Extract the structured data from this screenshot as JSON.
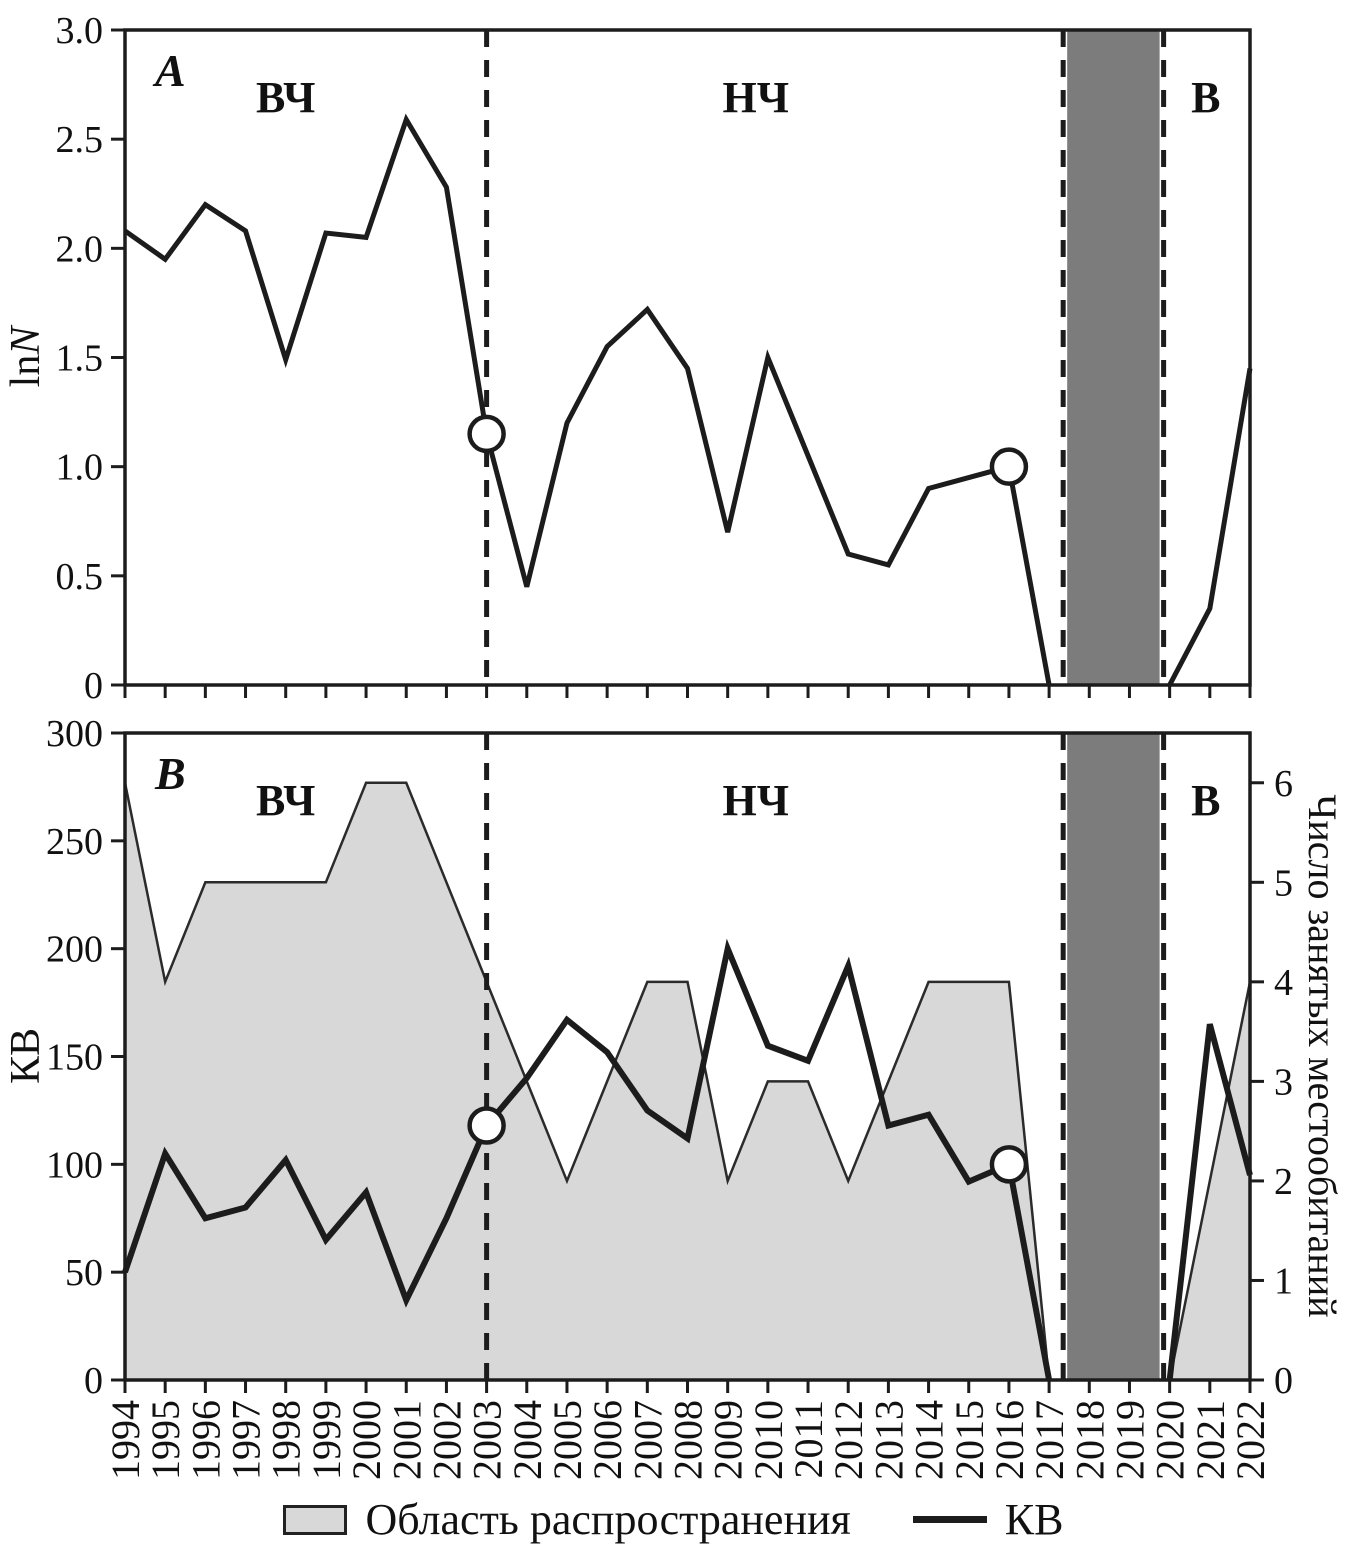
{
  "colors": {
    "line": "#1c1c1c",
    "area_fill": "#d8d8d8",
    "area_edge": "#2b2b2b",
    "band": "#7c7c7c",
    "background": "#ffffff"
  },
  "legend": {
    "area_label": "Область распространения",
    "line_label": "КВ"
  },
  "chart_data": [
    {
      "type": "line",
      "panel_letter": "A",
      "ylabel_prefix": "ln",
      "ylabel_italic": "N",
      "ylim": [
        0,
        3
      ],
      "ytick_values": [
        0,
        0.5,
        1,
        1.5,
        2,
        2.5,
        3
      ],
      "ytick_labels": [
        "0",
        "0.5",
        "1.0",
        "1.5",
        "2.0",
        "2.5",
        "3.0"
      ],
      "x": [
        1994,
        1995,
        1996,
        1997,
        1998,
        1999,
        2000,
        2001,
        2002,
        2003,
        2004,
        2005,
        2006,
        2007,
        2008,
        2009,
        2010,
        2011,
        2012,
        2013,
        2014,
        2015,
        2016,
        2017,
        2018,
        2019,
        2020,
        2021,
        2022
      ],
      "series": [
        {
          "name": "lnN",
          "values": [
            2.08,
            1.95,
            2.2,
            2.08,
            1.49,
            2.07,
            2.05,
            2.59,
            2.28,
            1.15,
            0.45,
            1.2,
            1.55,
            1.72,
            1.45,
            0.7,
            1.5,
            1.05,
            0.6,
            0.55,
            0.9,
            0.95,
            1.0,
            0,
            null,
            null,
            0,
            0.35,
            1.45
          ]
        }
      ],
      "markers": [
        {
          "x": 2003,
          "y": 1.15
        },
        {
          "x": 2016,
          "y": 1.0
        }
      ],
      "phase_labels": [
        {
          "text": "ВЧ",
          "x": 1998
        },
        {
          "text": "НЧ",
          "x": 2009.7
        },
        {
          "text": "В",
          "x": 2020.9
        }
      ],
      "dashed_lines_x": [
        2003,
        2017.35,
        2019.85
      ],
      "shaded_band_x": [
        2017.45,
        2019.75
      ]
    },
    {
      "type": "area-line",
      "panel_letter": "B",
      "ylabel_left": "КВ",
      "ylabel_right": "Число занятых местообитаний",
      "ylim_left": [
        0,
        300
      ],
      "ytick_values_left": [
        0,
        50,
        100,
        150,
        200,
        250,
        300
      ],
      "ytick_labels_left": [
        "0",
        "50",
        "100",
        "150",
        "200",
        "250",
        "300"
      ],
      "ylim_right": [
        0,
        6.5
      ],
      "ytick_values_right": [
        0,
        1,
        2,
        3,
        4,
        5,
        6
      ],
      "ytick_labels_right": [
        "0",
        "1",
        "2",
        "3",
        "4",
        "5",
        "6"
      ],
      "x": [
        1994,
        1995,
        1996,
        1997,
        1998,
        1999,
        2000,
        2001,
        2002,
        2003,
        2004,
        2005,
        2006,
        2007,
        2008,
        2009,
        2010,
        2011,
        2012,
        2013,
        2014,
        2015,
        2016,
        2017,
        2018,
        2019,
        2020,
        2021,
        2022
      ],
      "area_series": {
        "name": "Область распространения",
        "axis": "right",
        "values": [
          6,
          4,
          5,
          5,
          5,
          5,
          6,
          6,
          5,
          4,
          3,
          2,
          3,
          4,
          4,
          2,
          3,
          3,
          2,
          3,
          4,
          4,
          4,
          0,
          null,
          null,
          0,
          2,
          4
        ]
      },
      "line_series": {
        "name": "КВ",
        "axis": "left",
        "values": [
          50,
          105,
          75,
          80,
          102,
          65,
          87,
          37,
          75,
          118,
          140,
          167,
          152,
          125,
          112,
          200,
          155,
          148,
          192,
          118,
          123,
          92,
          100,
          0,
          null,
          null,
          0,
          165,
          95
        ]
      },
      "markers": [
        {
          "x": 2003,
          "y": 118
        },
        {
          "x": 2016,
          "y": 100
        }
      ],
      "phase_labels": [
        {
          "text": "ВЧ",
          "x": 1998
        },
        {
          "text": "НЧ",
          "x": 2009.7
        },
        {
          "text": "В",
          "x": 2020.9
        }
      ],
      "dashed_lines_x": [
        2003,
        2017.35,
        2019.85
      ],
      "shaded_band_x": [
        2017.45,
        2019.75
      ]
    }
  ]
}
